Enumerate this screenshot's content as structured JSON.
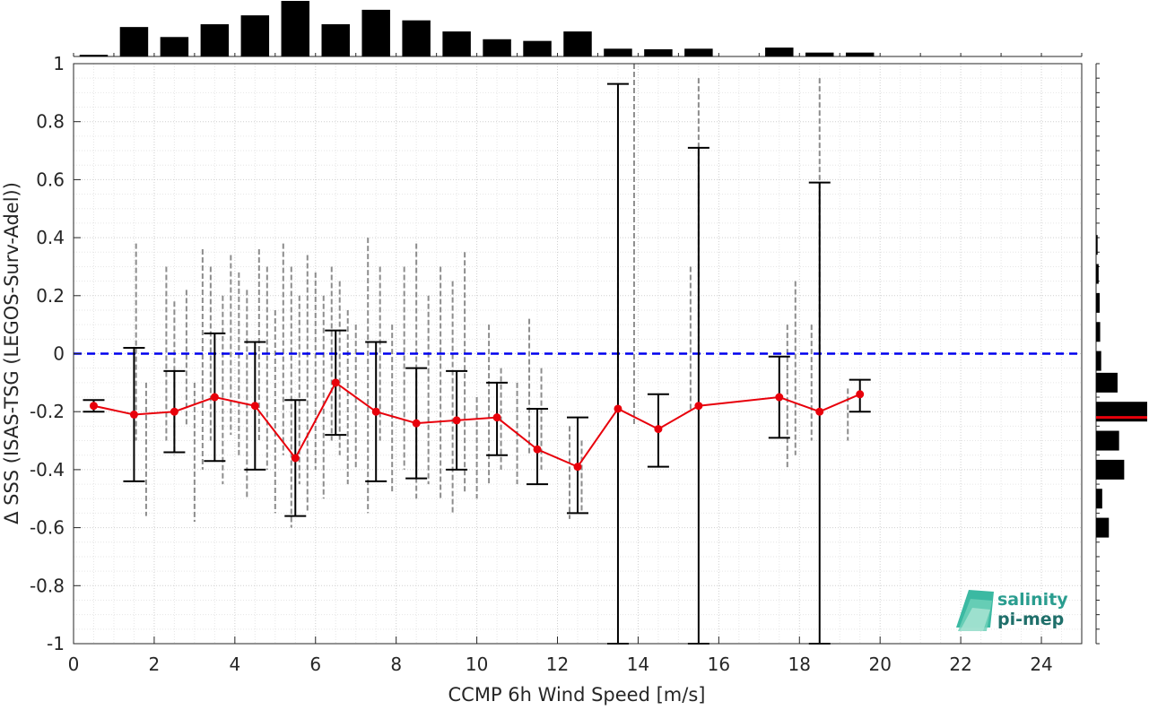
{
  "chart_data": {
    "type": "scatter",
    "title": "",
    "xlabel": "CCMP 6h Wind Speed [m/s]",
    "ylabel": "Δ SSS (ISAS-TSG (LEGOS-Surv-Adel))",
    "xlim": [
      0,
      25
    ],
    "ylim": [
      -1,
      1
    ],
    "xticks": [
      0,
      2,
      4,
      6,
      8,
      10,
      12,
      14,
      16,
      18,
      20,
      22,
      24
    ],
    "yticks": [
      -1,
      -0.8,
      -0.6,
      -0.4,
      -0.2,
      0,
      0.2,
      0.4,
      0.6,
      0.8,
      1
    ],
    "ytick_labels": [
      "-1",
      "-0.8",
      "-0.6",
      "-0.4",
      "-0.2",
      "0",
      "0.2",
      "0.4",
      "0.6",
      "0.8",
      "1"
    ],
    "grid": true,
    "zero_line": {
      "y": 0,
      "color": "#0000ee",
      "style": "dashed"
    },
    "binned": {
      "x": [
        0.5,
        1.5,
        2.5,
        3.5,
        4.5,
        5.5,
        6.5,
        7.5,
        8.5,
        9.5,
        10.5,
        11.5,
        12.5,
        13.5,
        14.5,
        15.5,
        17.5,
        18.5,
        19.5
      ],
      "mean": [
        -0.18,
        -0.21,
        -0.2,
        -0.15,
        -0.18,
        -0.36,
        -0.1,
        -0.2,
        -0.24,
        -0.23,
        -0.22,
        -0.33,
        -0.39,
        -0.19,
        -0.26,
        -0.18,
        -0.15,
        -0.2,
        -0.14
      ],
      "lower": [
        -0.2,
        -0.44,
        -0.34,
        -0.37,
        -0.4,
        -0.56,
        -0.28,
        -0.44,
        -0.43,
        -0.4,
        -0.35,
        -0.45,
        -0.55,
        -1.0,
        -0.39,
        -1.0,
        -0.29,
        -1.0,
        -0.2
      ],
      "upper": [
        -0.16,
        0.02,
        -0.06,
        0.07,
        0.04,
        -0.16,
        0.08,
        0.04,
        -0.05,
        -0.06,
        -0.1,
        -0.19,
        -0.22,
        0.93,
        -0.14,
        0.71,
        -0.01,
        0.59,
        -0.09
      ],
      "color": "#e8000b"
    },
    "scatter_clusters": [
      {
        "x": 1.55,
        "ymin": -0.3,
        "ymax": 0.38
      },
      {
        "x": 1.8,
        "ymin": -0.56,
        "ymax": -0.1
      },
      {
        "x": 2.3,
        "ymin": -0.3,
        "ymax": 0.3
      },
      {
        "x": 2.5,
        "ymin": -0.35,
        "ymax": 0.18
      },
      {
        "x": 2.8,
        "ymin": -0.25,
        "ymax": 0.22
      },
      {
        "x": 3.0,
        "ymin": -0.58,
        "ymax": -0.1
      },
      {
        "x": 3.2,
        "ymin": -0.4,
        "ymax": 0.36
      },
      {
        "x": 3.4,
        "ymin": -0.3,
        "ymax": 0.3
      },
      {
        "x": 3.7,
        "ymin": -0.45,
        "ymax": 0.2
      },
      {
        "x": 3.9,
        "ymin": -0.28,
        "ymax": 0.34
      },
      {
        "x": 4.1,
        "ymin": -0.35,
        "ymax": 0.28
      },
      {
        "x": 4.3,
        "ymin": -0.5,
        "ymax": 0.22
      },
      {
        "x": 4.6,
        "ymin": -0.3,
        "ymax": 0.36
      },
      {
        "x": 4.8,
        "ymin": -0.4,
        "ymax": 0.3
      },
      {
        "x": 5.0,
        "ymin": -0.55,
        "ymax": 0.15
      },
      {
        "x": 5.2,
        "ymin": -0.35,
        "ymax": 0.38
      },
      {
        "x": 5.4,
        "ymin": -0.6,
        "ymax": 0.3
      },
      {
        "x": 5.6,
        "ymin": -0.45,
        "ymax": 0.2
      },
      {
        "x": 5.8,
        "ymin": -0.55,
        "ymax": 0.34
      },
      {
        "x": 6.0,
        "ymin": -0.4,
        "ymax": 0.28
      },
      {
        "x": 6.2,
        "ymin": -0.5,
        "ymax": 0.2
      },
      {
        "x": 6.4,
        "ymin": -0.3,
        "ymax": 0.3
      },
      {
        "x": 6.6,
        "ymin": -0.35,
        "ymax": 0.25
      },
      {
        "x": 6.8,
        "ymin": -0.45,
        "ymax": 0.15
      },
      {
        "x": 7.0,
        "ymin": -0.4,
        "ymax": 0.1
      },
      {
        "x": 7.3,
        "ymin": -0.55,
        "ymax": 0.4
      },
      {
        "x": 7.6,
        "ymin": -0.3,
        "ymax": 0.3
      },
      {
        "x": 7.9,
        "ymin": -0.48,
        "ymax": 0.1
      },
      {
        "x": 8.2,
        "ymin": -0.4,
        "ymax": 0.3
      },
      {
        "x": 8.5,
        "ymin": -0.5,
        "ymax": 0.38
      },
      {
        "x": 8.8,
        "ymin": -0.45,
        "ymax": 0.2
      },
      {
        "x": 9.1,
        "ymin": -0.5,
        "ymax": 0.3
      },
      {
        "x": 9.4,
        "ymin": -0.55,
        "ymax": 0.25
      },
      {
        "x": 9.7,
        "ymin": -0.48,
        "ymax": 0.35
      },
      {
        "x": 10.0,
        "ymin": -0.5,
        "ymax": -0.15
      },
      {
        "x": 10.3,
        "ymin": -0.45,
        "ymax": 0.1
      },
      {
        "x": 10.6,
        "ymin": -0.4,
        "ymax": -0.05
      },
      {
        "x": 11.0,
        "ymin": -0.45,
        "ymax": -0.1
      },
      {
        "x": 11.3,
        "ymin": -0.35,
        "ymax": 0.12
      },
      {
        "x": 11.6,
        "ymin": -0.4,
        "ymax": -0.05
      },
      {
        "x": 12.3,
        "ymin": -0.57,
        "ymax": -0.25
      },
      {
        "x": 12.6,
        "ymin": -0.55,
        "ymax": -0.3
      },
      {
        "x": 13.5,
        "ymin": -0.3,
        "ymax": 0.3
      },
      {
        "x": 13.9,
        "ymin": -0.25,
        "ymax": 1.0
      },
      {
        "x": 15.3,
        "ymin": -0.2,
        "ymax": 0.3
      },
      {
        "x": 15.5,
        "ymin": 0.0,
        "ymax": 0.95
      },
      {
        "x": 17.7,
        "ymin": -0.4,
        "ymax": 0.1
      },
      {
        "x": 17.9,
        "ymin": -0.35,
        "ymax": 0.25
      },
      {
        "x": 18.3,
        "ymin": -0.3,
        "ymax": 0.1
      },
      {
        "x": 18.5,
        "ymin": 0.0,
        "ymax": 0.95
      },
      {
        "x": 19.2,
        "ymin": -0.3,
        "ymax": -0.12
      }
    ],
    "top_histogram": {
      "bins": [
        0.5,
        1.5,
        2.5,
        3.5,
        4.5,
        5.5,
        6.5,
        7.5,
        8.5,
        9.5,
        10.5,
        11.5,
        12.5,
        13.5,
        14.5,
        15.5,
        16.5,
        17.5,
        18.5,
        19.5
      ],
      "counts": [
        3,
        53,
        35,
        58,
        74,
        100,
        58,
        84,
        65,
        45,
        31,
        28,
        45,
        14,
        13,
        14,
        0,
        16,
        7,
        7
      ]
    },
    "right_histogram": {
      "bins": [
        0.375,
        0.275,
        0.175,
        0.075,
        -0.025,
        -0.1,
        -0.2,
        -0.3,
        -0.4,
        -0.5,
        -0.6
      ],
      "counts": [
        3,
        5,
        7,
        8,
        10,
        42,
        100,
        45,
        55,
        12,
        25
      ],
      "median": -0.22
    },
    "logo": {
      "line1": "salinity",
      "line2": "pi-mep"
    }
  }
}
